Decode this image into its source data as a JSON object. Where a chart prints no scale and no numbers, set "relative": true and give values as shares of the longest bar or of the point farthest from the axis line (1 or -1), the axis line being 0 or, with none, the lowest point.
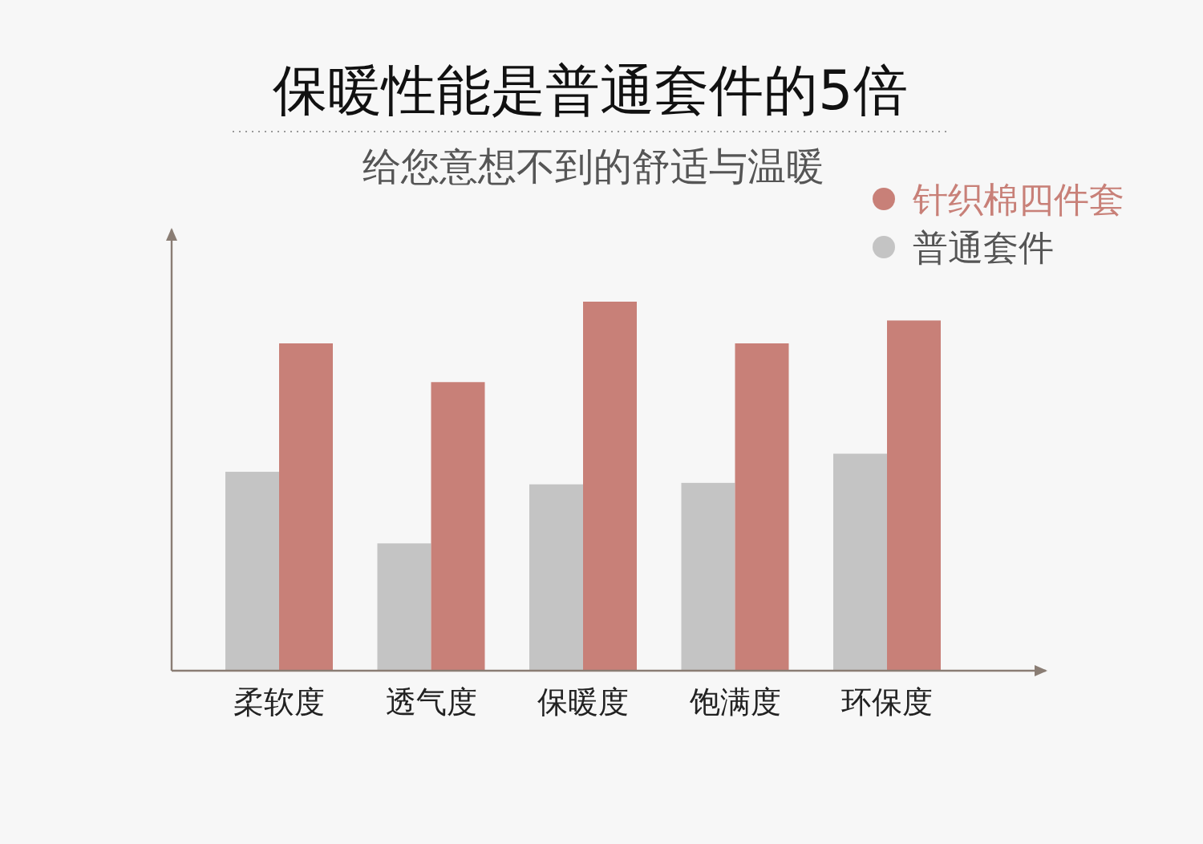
{
  "chart_data": {
    "type": "bar",
    "title": "保暖性能是普通套件的5倍",
    "subtitle": "给您意想不到的舒适与温暖",
    "categories": [
      "柔软度",
      "透气度",
      "保暖度",
      "饱满度",
      "环保度"
    ],
    "relative": true,
    "legend": "top right",
    "series": [
      {
        "name": "普通套件",
        "color": "#c4c4c4",
        "values": [
          0.539,
          0.345,
          0.505,
          0.509,
          0.588
        ]
      },
      {
        "name": "针织棉四件套",
        "color": "#c88078",
        "values": [
          0.887,
          0.782,
          1,
          0.887,
          0.949
        ]
      }
    ]
  }
}
